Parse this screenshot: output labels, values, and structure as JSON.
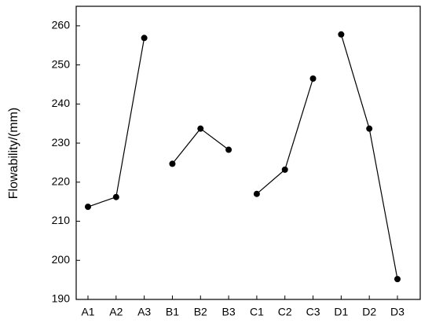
{
  "chart_data": {
    "type": "line",
    "y_label": "Flowability/(mm)",
    "categories": [
      "A1",
      "A2",
      "A3",
      "B1",
      "B2",
      "B3",
      "C1",
      "C2",
      "C3",
      "D1",
      "D2",
      "D3"
    ],
    "series": [
      {
        "color": "#000000",
        "values": [
          213.7,
          216.2,
          256.9,
          null,
          null,
          null,
          null,
          null,
          null,
          null,
          null,
          null
        ]
      },
      {
        "color": "#000000",
        "values": [
          null,
          null,
          null,
          224.7,
          233.7,
          228.3,
          null,
          null,
          null,
          null,
          null,
          null
        ]
      },
      {
        "color": "#000000",
        "values": [
          null,
          null,
          null,
          null,
          null,
          null,
          217.0,
          223.2,
          246.5,
          null,
          null,
          null
        ]
      },
      {
        "color": "#000000",
        "values": [
          null,
          null,
          null,
          null,
          null,
          null,
          null,
          null,
          null,
          257.8,
          233.7,
          195.2
        ]
      }
    ],
    "ylim": [
      190,
      265
    ],
    "yticks": [
      190,
      200,
      210,
      220,
      230,
      240,
      250,
      260
    ],
    "grid": false
  }
}
